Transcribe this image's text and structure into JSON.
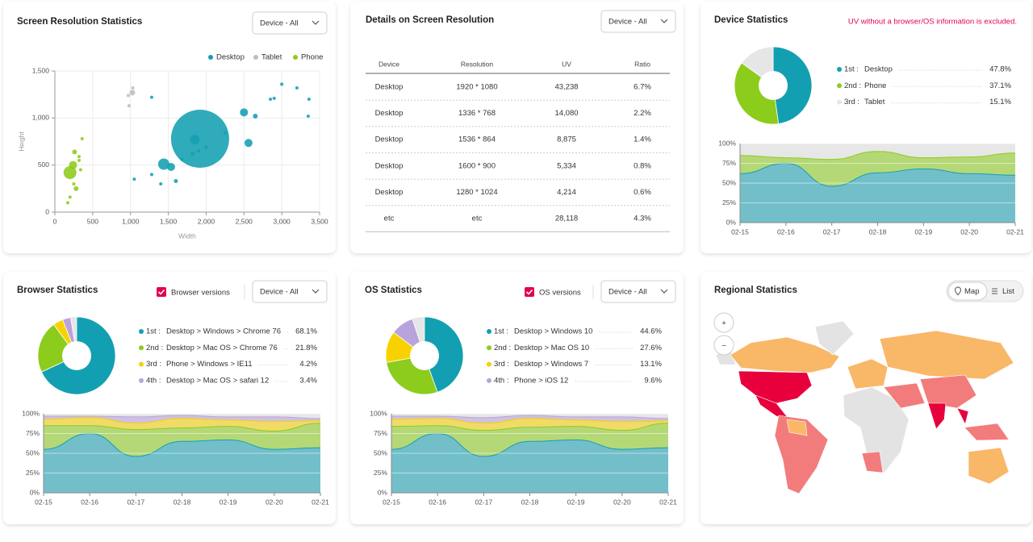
{
  "chart_data": [
    {
      "type": "scatter",
      "title": "Screen Resolution Statistics",
      "dropdown": "Device - All",
      "xlabel": "Width",
      "ylabel": "Height",
      "xlim": [
        0,
        3500
      ],
      "ylim": [
        0,
        1500
      ],
      "xticks": [
        0,
        500,
        {
          "value": 1000,
          "label": "1,000"
        },
        {
          "value": 1500,
          "label": "1,500"
        },
        {
          "value": 2000,
          "label": "2,000"
        },
        {
          "value": 2500,
          "label": "2,500"
        },
        {
          "value": 3000,
          "label": "3,000"
        },
        {
          "value": 3500,
          "label": "3,500"
        }
      ],
      "yticks": [
        0,
        500,
        {
          "value": 1000,
          "label": "1,000"
        },
        {
          "value": 1500,
          "label": "1,500"
        }
      ],
      "grid": true,
      "legend": "top-right",
      "series": [
        {
          "name": "Desktop",
          "color": "#139fb2",
          "x": [
            1920,
            1440,
            1536,
            1050,
            1280,
            1400,
            1600,
            1680,
            1850,
            1820,
            1900,
            2000,
            2250,
            2500,
            2560,
            2650,
            2850,
            2900,
            3000,
            3200,
            3360,
            3350,
            1280
          ],
          "values": [
            780,
            510,
            480,
            350,
            400,
            300,
            330,
            560,
            770,
            620,
            650,
            690,
            840,
            1060,
            735,
            1020,
            1200,
            1210,
            1360,
            1320,
            1200,
            1020,
            1220
          ],
          "sizes": [
            36,
            7,
            5,
            2,
            2,
            2,
            2.5,
            2,
            6,
            2.5,
            2,
            2,
            2,
            5,
            5,
            3,
            2,
            2,
            2,
            2,
            2,
            2,
            2
          ]
        },
        {
          "name": "Tablet",
          "color": "#bdbdbd",
          "x": [
            970,
            980,
            1024,
            1030
          ],
          "values": [
            1240,
            1130,
            1270,
            1320
          ],
          "sizes": [
            2,
            2,
            3.5,
            2
          ]
        },
        {
          "name": "Phone",
          "color": "#8ccc1c",
          "x": [
            200,
            240,
            260,
            280,
            320,
            320,
            340,
            360,
            200,
            170,
            250
          ],
          "values": [
            420,
            500,
            640,
            250,
            590,
            550,
            450,
            780,
            160,
            100,
            300
          ],
          "sizes": [
            8,
            5,
            3,
            3,
            2,
            2,
            2,
            2,
            2,
            2,
            2
          ]
        }
      ]
    },
    {
      "type": "pie",
      "title": "Device Statistics",
      "note": "UV without a browser/OS information is excluded.",
      "ranks": [
        "1st :",
        "2nd :",
        "3rd :"
      ],
      "categories": [
        "Desktop",
        "Phone",
        "Tablet"
      ],
      "values": [
        47.8,
        37.1,
        15.1
      ],
      "value_labels": [
        "47.8%",
        "37.1%",
        "15.1%"
      ],
      "colors": [
        "#139fb2",
        "#8ccc1c",
        "#e6e6e6"
      ]
    },
    {
      "type": "area",
      "stacked": true,
      "categories": [
        "02-15",
        "02-16",
        "02-17",
        "02-18",
        "02-19",
        "02-20",
        "02-21"
      ],
      "ylim": [
        0,
        100
      ],
      "yticks": [
        {
          "value": 0,
          "label": "0%"
        },
        {
          "value": 25,
          "label": "25%"
        },
        {
          "value": 50,
          "label": "50%"
        },
        {
          "value": 75,
          "label": "75%"
        },
        {
          "value": 100,
          "label": "100%"
        }
      ],
      "grid": true,
      "series": [
        {
          "color": "#139fb2",
          "values": [
            62,
            75,
            46,
            63,
            68,
            62,
            60
          ]
        },
        {
          "color": "#8ccc1c",
          "values": [
            23,
            7,
            34,
            27,
            14,
            21,
            28
          ]
        }
      ]
    },
    {
      "type": "pie",
      "title": "Browser Statistics",
      "checkbox": "Browser versions",
      "dropdown": "Device - All",
      "ranks": [
        "1st :",
        "2nd :",
        "3rd :",
        "4th :"
      ],
      "categories": [
        "Desktop > Windows > Chrome 76",
        "Desktop > Mac OS > Chrome 76",
        "Phone > Windows > IE11",
        "Desktop > Mac OS > safari 12"
      ],
      "values": [
        68.1,
        21.8,
        4.2,
        3.4
      ],
      "value_labels": [
        "68.1%",
        "21.8%",
        "4.2%",
        "3.4%"
      ],
      "colors": [
        "#139fb2",
        "#8ccc1c",
        "#f7d200",
        "#b9a3dc"
      ]
    },
    {
      "type": "area",
      "stacked": true,
      "categories": [
        "02-15",
        "02-16",
        "02-17",
        "02-18",
        "02-19",
        "02-20",
        "02-21"
      ],
      "ylim": [
        0,
        100
      ],
      "yticks": [
        {
          "value": 0,
          "label": "0%"
        },
        {
          "value": 25,
          "label": "25%"
        },
        {
          "value": 50,
          "label": "50%"
        },
        {
          "value": 75,
          "label": "75%"
        },
        {
          "value": 100,
          "label": "100%"
        }
      ],
      "grid": true,
      "series": [
        {
          "color": "#139fb2",
          "values": [
            55,
            75,
            46,
            65,
            67,
            55,
            57
          ]
        },
        {
          "color": "#8ccc1c",
          "values": [
            30,
            10,
            34,
            17,
            17,
            23,
            31
          ]
        },
        {
          "color": "#f7d200",
          "values": [
            8,
            10,
            8,
            12,
            8,
            12,
            3
          ]
        },
        {
          "color": "#b9a3dc",
          "values": [
            4,
            2,
            8,
            4,
            4,
            6,
            3
          ]
        }
      ]
    },
    {
      "type": "pie",
      "title": "OS Statistics",
      "checkbox": "OS versions",
      "dropdown": "Device - All",
      "ranks": [
        "1st :",
        "2nd :",
        "3rd :",
        "4th :"
      ],
      "categories": [
        "Desktop > Windows 10",
        "Desktop > Mac OS 10",
        "Desktop > Windows 7",
        "Phone > iOS 12"
      ],
      "values": [
        44.6,
        27.6,
        13.1,
        9.6
      ],
      "value_labels": [
        "44.6%",
        "27.6%",
        "13.1%",
        "9.6%"
      ],
      "colors": [
        "#139fb2",
        "#8ccc1c",
        "#f7d200",
        "#b9a3dc"
      ]
    },
    {
      "type": "area",
      "stacked": true,
      "categories": [
        "02-15",
        "02-16",
        "02-17",
        "02-18",
        "02-19",
        "02-20",
        "02-21"
      ],
      "ylim": [
        0,
        100
      ],
      "yticks": [
        {
          "value": 0,
          "label": "0%"
        },
        {
          "value": 25,
          "label": "25%"
        },
        {
          "value": 50,
          "label": "50%"
        },
        {
          "value": 75,
          "label": "75%"
        },
        {
          "value": 100,
          "label": "100%"
        }
      ],
      "grid": true,
      "series": [
        {
          "color": "#139fb2",
          "values": [
            55,
            75,
            46,
            65,
            67,
            55,
            57
          ]
        },
        {
          "color": "#8ccc1c",
          "values": [
            29,
            10,
            33,
            18,
            17,
            24,
            31
          ]
        },
        {
          "color": "#f7d200",
          "values": [
            9,
            9,
            9,
            11,
            8,
            11,
            3
          ]
        },
        {
          "color": "#b9a3dc",
          "values": [
            4,
            3,
            7,
            4,
            4,
            6,
            3
          ]
        }
      ]
    }
  ],
  "table_panel": {
    "title": "Details on Screen Resolution",
    "dropdown": "Device - All",
    "columns": [
      "Device",
      "Resolution",
      "UV",
      "Ratio"
    ],
    "rows": [
      [
        "Desktop",
        "1920 * 1080",
        "43,238",
        "6.7%"
      ],
      [
        "Desktop",
        "1336 * 768",
        "14,080",
        "2.2%"
      ],
      [
        "Desktop",
        "1536 * 864",
        "8,875",
        "1.4%"
      ],
      [
        "Desktop",
        "1600 * 900",
        "5,334",
        "0.8%"
      ],
      [
        "Desktop",
        "1280 * 1024",
        "4,214",
        "0.6%"
      ],
      [
        "etc",
        "etc",
        "28,118",
        "4.3%"
      ]
    ]
  },
  "map_panel": {
    "title": "Regional Statistics",
    "toggle": [
      "Map",
      "List"
    ],
    "zoom": [
      "+",
      "−"
    ]
  }
}
